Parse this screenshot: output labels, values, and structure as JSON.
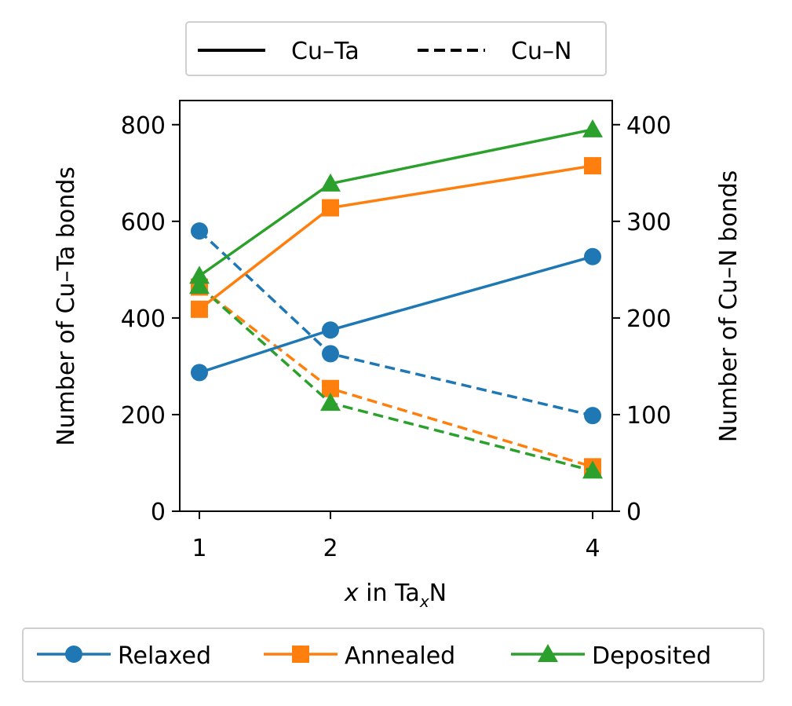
{
  "chart_data": {
    "type": "line",
    "x": [
      1,
      2,
      4
    ],
    "x_ticks": [
      "1",
      "2",
      "4"
    ],
    "xlabel": {
      "var": "x",
      "mid": " in  Ta",
      "sub": "x",
      "end": "N"
    },
    "ylabel_left": "Number of Cu–Ta bonds",
    "ylabel_right": "Number of Cu–N bonds",
    "ylim_left": [
      0,
      850
    ],
    "ylim_right": [
      0,
      425
    ],
    "yticks_left": [
      "0",
      "200",
      "400",
      "600",
      "800"
    ],
    "yticks_right": [
      "0",
      "100",
      "200",
      "300",
      "400"
    ],
    "series": [
      {
        "name": "Relaxed",
        "color": "#1f77b4",
        "marker": "circle",
        "cu_ta": [
          287,
          375,
          527
        ],
        "cu_n": [
          290,
          163,
          99
        ]
      },
      {
        "name": "Annealed",
        "color": "#ff7f0e",
        "marker": "square",
        "cu_ta": [
          418,
          628,
          715
        ],
        "cu_n": [
          232,
          127,
          46
        ]
      },
      {
        "name": "Deposited",
        "color": "#2ca02c",
        "marker": "triangle",
        "cu_ta": [
          487,
          678,
          790
        ],
        "cu_n": [
          233,
          112,
          42
        ]
      }
    ],
    "bond_legend": [
      {
        "label": "Cu–Ta",
        "style": "solid"
      },
      {
        "label": "Cu–N",
        "style": "dashed"
      }
    ]
  }
}
